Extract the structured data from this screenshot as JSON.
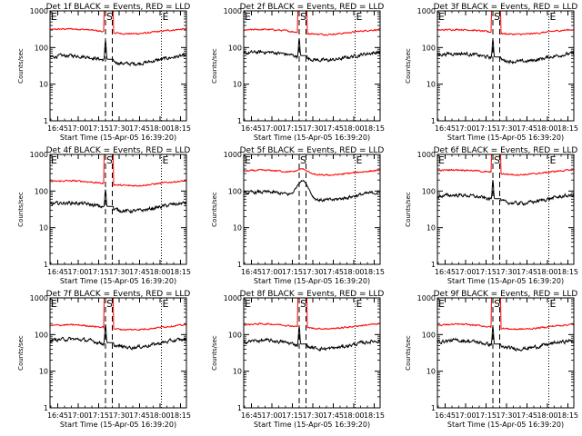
{
  "chart_data": [
    {
      "type": "line",
      "title": "Det 1f BLACK = Events, RED = LLD",
      "ylabel": "Counts/sec",
      "xlabel": "Start Time (15-Apr-05 16:39:20)",
      "yscale": "log",
      "ylim": [
        1,
        1000
      ],
      "ytick_labels": [
        "1",
        "10",
        "100",
        "1000"
      ],
      "xlim": [
        "16:39:20",
        "18:19:20"
      ],
      "xtick_labels": [
        "16:45",
        "17:00",
        "17:15",
        "17:30",
        "17:45",
        "18:00",
        "18:15"
      ],
      "markers": [
        {
          "label": "E",
          "time": "16:39:20",
          "style": "dotted"
        },
        {
          "label": "S",
          "time": "17:20:00",
          "style": "dashed"
        },
        {
          "label": "",
          "time": "17:25:00",
          "style": "dashed"
        },
        {
          "label": "E",
          "time": "18:01:00",
          "style": "dotted"
        }
      ],
      "series": [
        {
          "role": "LLD",
          "color": "#ff0000",
          "baseline": 280,
          "peak": 1000
        },
        {
          "role": "Events",
          "color": "#000000",
          "baseline": 48,
          "peak": 160
        }
      ]
    },
    {
      "type": "line",
      "title": "Det 2f BLACK = Events, RED = LLD",
      "ylabel": "Counts/sec",
      "xlabel": "Start Time (15-Apr-05 16:39:20)",
      "yscale": "log",
      "ylim": [
        1,
        1000
      ],
      "ytick_labels": [
        "1",
        "10",
        "100",
        "1000"
      ],
      "xlim": [
        "16:39:20",
        "18:19:20"
      ],
      "xtick_labels": [
        "16:45",
        "17:00",
        "17:15",
        "17:30",
        "17:45",
        "18:00",
        "18:15"
      ],
      "markers": [
        {
          "label": "E",
          "time": "16:39:20",
          "style": "dotted"
        },
        {
          "label": "S",
          "time": "17:20:00",
          "style": "dashed"
        },
        {
          "label": "",
          "time": "17:25:00",
          "style": "dashed"
        },
        {
          "label": "E",
          "time": "18:01:00",
          "style": "dotted"
        }
      ],
      "series": [
        {
          "role": "LLD",
          "color": "#ff0000",
          "baseline": 270,
          "peak": 1000
        },
        {
          "role": "Events",
          "color": "#000000",
          "baseline": 60,
          "peak": 180
        }
      ]
    },
    {
      "type": "line",
      "title": "Det 3f BLACK = Events, RED = LLD",
      "ylabel": "Counts/sec",
      "xlabel": "Start Time (15-Apr-05 16:39:20)",
      "yscale": "log",
      "ylim": [
        1,
        1000
      ],
      "ytick_labels": [
        "1",
        "10",
        "100",
        "1000"
      ],
      "xlim": [
        "16:39:20",
        "18:19:20"
      ],
      "xtick_labels": [
        "16:45",
        "17:00",
        "17:15",
        "17:30",
        "17:45",
        "18:00",
        "18:15"
      ],
      "markers": [
        {
          "label": "E",
          "time": "16:39:20",
          "style": "dotted"
        },
        {
          "label": "S",
          "time": "17:20:00",
          "style": "dashed"
        },
        {
          "label": "",
          "time": "17:25:00",
          "style": "dashed"
        },
        {
          "label": "E",
          "time": "18:01:00",
          "style": "dotted"
        }
      ],
      "series": [
        {
          "role": "LLD",
          "color": "#ff0000",
          "baseline": 270,
          "peak": 1000
        },
        {
          "role": "Events",
          "color": "#000000",
          "baseline": 55,
          "peak": 170
        }
      ]
    },
    {
      "type": "line",
      "title": "Det 4f BLACK = Events, RED = LLD",
      "ylabel": "Counts/sec",
      "xlabel": "Start Time (15-Apr-05 16:39:20)",
      "yscale": "log",
      "ylim": [
        1,
        1000
      ],
      "ytick_labels": [
        "1",
        "10",
        "100",
        "1000"
      ],
      "xlim": [
        "16:39:20",
        "18:19:20"
      ],
      "xtick_labels": [
        "16:45",
        "17:00",
        "17:15",
        "17:30",
        "17:45",
        "18:00",
        "18:15"
      ],
      "markers": [
        {
          "label": "E",
          "time": "16:39:20",
          "style": "dotted"
        },
        {
          "label": "S",
          "time": "17:20:00",
          "style": "dashed"
        },
        {
          "label": "",
          "time": "17:25:00",
          "style": "dashed"
        },
        {
          "label": "E",
          "time": "18:01:00",
          "style": "dotted"
        }
      ],
      "series": [
        {
          "role": "LLD",
          "color": "#ff0000",
          "baseline": 165,
          "peak": 1000
        },
        {
          "role": "Events",
          "color": "#000000",
          "baseline": 38,
          "peak": 110
        }
      ]
    },
    {
      "type": "line",
      "title": "Det 5f BLACK = Events, RED = LLD",
      "ylabel": "Counts/sec",
      "xlabel": "Start Time (15-Apr-05 16:39:20)",
      "yscale": "log",
      "ylim": [
        1,
        1000
      ],
      "ytick_labels": [
        "1",
        "10",
        "100",
        "1000"
      ],
      "xlim": [
        "16:39:20",
        "18:19:20"
      ],
      "xtick_labels": [
        "16:45",
        "17:00",
        "17:15",
        "17:30",
        "17:45",
        "18:00",
        "18:15"
      ],
      "markers": [
        {
          "label": "E",
          "time": "16:39:20",
          "style": "dotted"
        },
        {
          "label": "S",
          "time": "17:20:00",
          "style": "dashed"
        },
        {
          "label": "",
          "time": "17:25:00",
          "style": "dashed"
        },
        {
          "label": "E",
          "time": "18:01:00",
          "style": "dotted"
        }
      ],
      "series": [
        {
          "role": "LLD",
          "color": "#ff0000",
          "baseline": 320,
          "peak": 420
        },
        {
          "role": "Events",
          "color": "#000000",
          "baseline": 75,
          "peak": 200
        }
      ]
    },
    {
      "type": "line",
      "title": "Det 6f BLACK = Events, RED = LLD",
      "ylabel": "Counts/sec",
      "xlabel": "Start Time (15-Apr-05 16:39:20)",
      "yscale": "log",
      "ylim": [
        1,
        1000
      ],
      "ytick_labels": [
        "1",
        "10",
        "100",
        "1000"
      ],
      "xlim": [
        "16:39:20",
        "18:19:20"
      ],
      "xtick_labels": [
        "16:45",
        "17:00",
        "17:15",
        "17:30",
        "17:45",
        "18:00",
        "18:15"
      ],
      "markers": [
        {
          "label": "E",
          "time": "16:39:20",
          "style": "dotted"
        },
        {
          "label": "S",
          "time": "17:20:00",
          "style": "dashed"
        },
        {
          "label": "",
          "time": "17:25:00",
          "style": "dashed"
        },
        {
          "label": "E",
          "time": "18:01:00",
          "style": "dotted"
        }
      ],
      "series": [
        {
          "role": "LLD",
          "color": "#ff0000",
          "baseline": 330,
          "peak": 1000
        },
        {
          "role": "Events",
          "color": "#000000",
          "baseline": 62,
          "peak": 200
        }
      ]
    },
    {
      "type": "line",
      "title": "Det 7f BLACK = Events, RED = LLD",
      "ylabel": "Counts/sec",
      "xlabel": "Start Time (15-Apr-05 16:39:20)",
      "yscale": "log",
      "ylim": [
        1,
        1000
      ],
      "ytick_labels": [
        "1",
        "10",
        "100",
        "1000"
      ],
      "xlim": [
        "16:39:20",
        "18:19:20"
      ],
      "xtick_labels": [
        "16:45",
        "17:00",
        "17:15",
        "17:30",
        "17:45",
        "18:00",
        "18:15"
      ],
      "markers": [
        {
          "label": "E",
          "time": "16:39:20",
          "style": "dotted"
        },
        {
          "label": "S",
          "time": "17:20:00",
          "style": "dashed"
        },
        {
          "label": "",
          "time": "17:25:00",
          "style": "dashed"
        },
        {
          "label": "E",
          "time": "18:01:00",
          "style": "dotted"
        }
      ],
      "series": [
        {
          "role": "LLD",
          "color": "#ff0000",
          "baseline": 160,
          "peak": 1000
        },
        {
          "role": "Events",
          "color": "#000000",
          "baseline": 60,
          "peak": 190
        }
      ]
    },
    {
      "type": "line",
      "title": "Det 8f BLACK = Events, RED = LLD",
      "ylabel": "Counts/sec",
      "xlabel": "Start Time (15-Apr-05 16:39:20)",
      "yscale": "log",
      "ylim": [
        1,
        1000
      ],
      "ytick_labels": [
        "1",
        "10",
        "100",
        "1000"
      ],
      "xlim": [
        "16:39:20",
        "18:19:20"
      ],
      "xtick_labels": [
        "16:45",
        "17:00",
        "17:15",
        "17:30",
        "17:45",
        "18:00",
        "18:15"
      ],
      "markers": [
        {
          "label": "E",
          "time": "16:39:20",
          "style": "dotted"
        },
        {
          "label": "S",
          "time": "17:20:00",
          "style": "dashed"
        },
        {
          "label": "",
          "time": "17:25:00",
          "style": "dashed"
        },
        {
          "label": "E",
          "time": "18:01:00",
          "style": "dotted"
        }
      ],
      "series": [
        {
          "role": "LLD",
          "color": "#ff0000",
          "baseline": 170,
          "peak": 1000
        },
        {
          "role": "Events",
          "color": "#000000",
          "baseline": 55,
          "peak": 170
        }
      ]
    },
    {
      "type": "line",
      "title": "Det 9f BLACK = Events, RED = LLD",
      "ylabel": "Counts/sec",
      "xlabel": "Start Time (15-Apr-05 16:39:20)",
      "yscale": "log",
      "ylim": [
        1,
        1000
      ],
      "ytick_labels": [
        "1",
        "10",
        "100",
        "1000"
      ],
      "xlim": [
        "16:39:20",
        "18:19:20"
      ],
      "xtick_labels": [
        "16:45",
        "17:00",
        "17:15",
        "17:30",
        "17:45",
        "18:00",
        "18:15"
      ],
      "markers": [
        {
          "label": "E",
          "time": "16:39:20",
          "style": "dotted"
        },
        {
          "label": "S",
          "time": "17:20:00",
          "style": "dashed"
        },
        {
          "label": "",
          "time": "17:25:00",
          "style": "dashed"
        },
        {
          "label": "E",
          "time": "18:01:00",
          "style": "dotted"
        }
      ],
      "series": [
        {
          "role": "LLD",
          "color": "#ff0000",
          "baseline": 165,
          "peak": 1000
        },
        {
          "role": "Events",
          "color": "#000000",
          "baseline": 55,
          "peak": 170
        }
      ]
    }
  ]
}
